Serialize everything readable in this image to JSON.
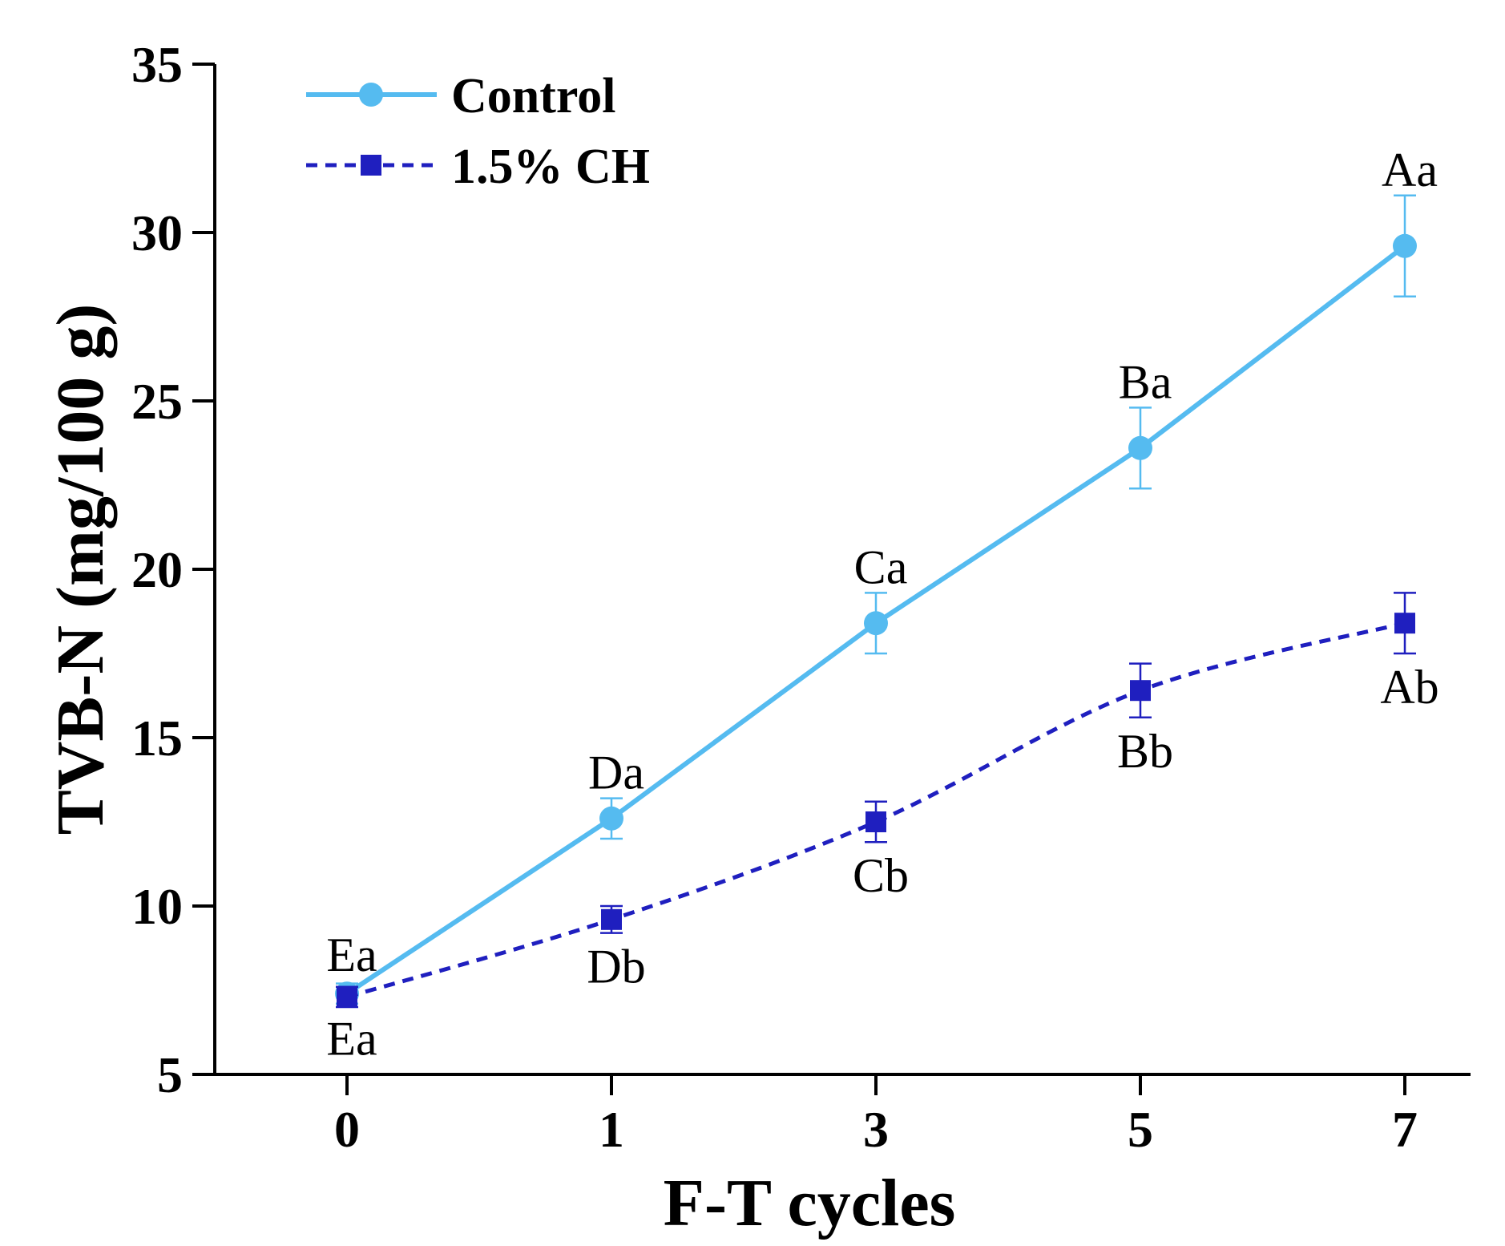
{
  "chart_data": {
    "type": "line",
    "title": "",
    "xlabel": "F-T cycles",
    "ylabel": "TVB-N (mg/100 g)",
    "categories": [
      "0",
      "1",
      "3",
      "5",
      "7"
    ],
    "ylim": [
      5,
      35
    ],
    "yticks": [
      5,
      10,
      15,
      20,
      25,
      30,
      35
    ],
    "legend_position": "top-left",
    "grid": false,
    "series": [
      {
        "name": "Control",
        "color": "#55bbf0",
        "line_style": "solid",
        "marker": "circle",
        "values": [
          7.4,
          12.6,
          18.4,
          23.6,
          29.6
        ],
        "errors": [
          0.3,
          0.6,
          0.9,
          1.2,
          1.5
        ],
        "labels": [
          "Ea",
          "Da",
          "Ca",
          "Ba",
          "Aa"
        ],
        "label_side": "above"
      },
      {
        "name": "1.5% CH",
        "color": "#1f1fbf",
        "line_style": "dashed",
        "marker": "square",
        "values": [
          7.3,
          9.6,
          12.5,
          16.4,
          18.4
        ],
        "errors": [
          0.3,
          0.4,
          0.6,
          0.8,
          0.9
        ],
        "labels": [
          "Ea",
          "Db",
          "Cb",
          "Bb",
          "Ab"
        ],
        "label_side": "below"
      }
    ]
  }
}
